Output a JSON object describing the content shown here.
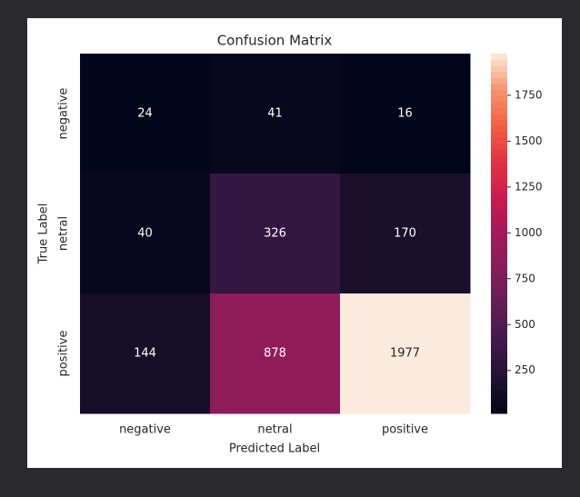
{
  "chart_data": {
    "type": "heatmap",
    "title": "Confusion Matrix",
    "x_categories": [
      "negative",
      "netral",
      "positive"
    ],
    "y_categories": [
      "negative",
      "netral",
      "positive"
    ],
    "values": [
      [
        24,
        41,
        16
      ],
      [
        40,
        326,
        170
      ],
      [
        144,
        878,
        1977
      ]
    ],
    "xlabel": "Predicted Label",
    "ylabel": "True Label",
    "clim": [
      16,
      1977
    ],
    "cticks": [
      250,
      500,
      750,
      1000,
      1250,
      1500,
      1750
    ],
    "colorscale": [
      "#03051a",
      "#221331",
      "#40184d",
      "#611f53",
      "#841e5a",
      "#a11a5b",
      "#cb1b4f",
      "#e13342",
      "#f06043",
      "#f5936e",
      "#faebdd"
    ]
  }
}
